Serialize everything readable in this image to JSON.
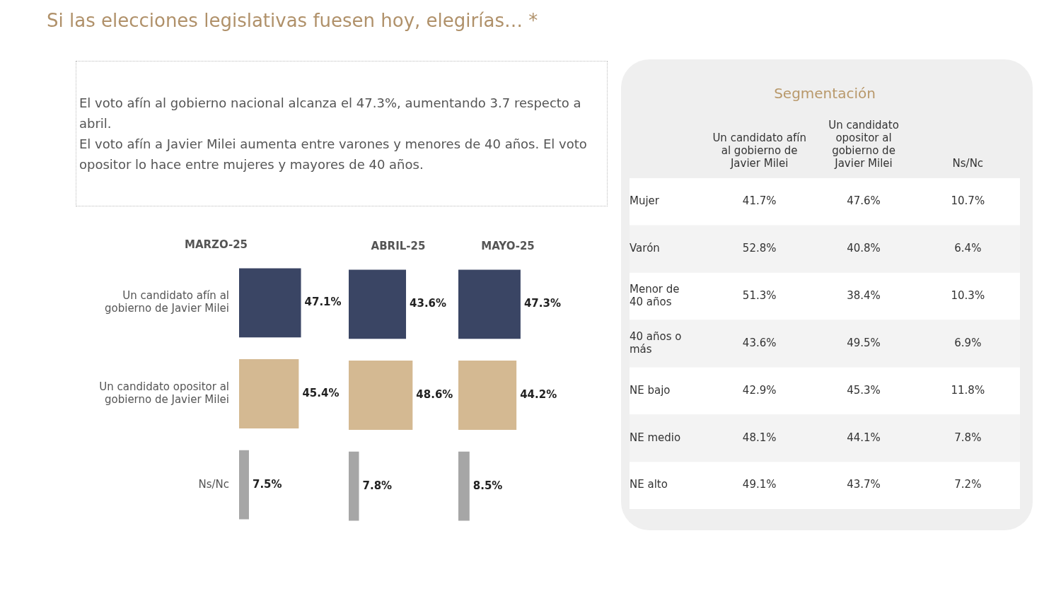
{
  "chart_data": [
    {
      "type": "other",
      "title": "Si las elecciones legislativas fuesen hoy, elegirías… *",
      "annotations": [
        "El voto afín al gobierno nacional alcanza el 47.3%, aumentando 3.7 respecto a abril.",
        "El voto afín a Javier Milei aumenta entre varones y menores de 40 años. El voto opositor lo hace entre mujeres y mayores de 40 años."
      ]
    },
    {
      "type": "bar",
      "orientation": "horizontal",
      "title": "MARZO-25",
      "tick_labels": "y",
      "categories": [
        "Un candidato afín al gobierno de Javier Milei",
        "Un candidato opositor al gobierno de Javier Milei",
        "Ns/Nc"
      ],
      "values": [
        47.1,
        45.4,
        7.5
      ],
      "value_labels": [
        "47.1%",
        "45.4%",
        "7.5%"
      ],
      "colors": [
        "#3a4564",
        "#d4b992",
        "#a6a6a6"
      ]
    },
    {
      "type": "bar",
      "orientation": "horizontal",
      "title": "ABRIL-25",
      "tick_labels": false,
      "categories": [
        null,
        null,
        null
      ],
      "values": [
        43.6,
        48.6,
        7.8
      ],
      "value_labels": [
        "43.6%",
        "48.6%",
        "7.8%"
      ],
      "colors": [
        "#3a4564",
        "#d4b992",
        "#a6a6a6"
      ]
    },
    {
      "type": "bar",
      "orientation": "horizontal",
      "title": "MAYO-25",
      "tick_labels": false,
      "categories": [
        null,
        null,
        null
      ],
      "values": [
        47.3,
        44.2,
        8.5
      ],
      "value_labels": [
        "47.3%",
        "44.2%",
        "8.5%"
      ],
      "colors": [
        "#3a4564",
        "#d4b992",
        "#a6a6a6"
      ]
    },
    {
      "type": "heatmap",
      "title": "Segmentación",
      "categories": [
        "Un candidato afín al gobierno de Javier Milei",
        "Un candidato opositor al gobierno de Javier Milei",
        "Ns/Nc"
      ],
      "y_categories": [
        "Mujer",
        "Varón",
        "Menor de 40 años",
        "40 años o más",
        "NE bajo",
        "NE medio",
        "NE alto"
      ],
      "cells": [
        [
          41.7,
          47.6,
          10.7
        ],
        [
          52.8,
          40.8,
          6.4
        ],
        [
          51.3,
          38.4,
          10.3
        ],
        [
          43.6,
          49.5,
          6.9
        ],
        [
          42.9,
          45.3,
          11.8
        ],
        [
          48.1,
          44.1,
          7.8
        ],
        [
          49.1,
          43.7,
          7.2
        ]
      ],
      "cell_labels": [
        [
          "41.7%",
          "47.6%",
          "10.7%"
        ],
        [
          "52.8%",
          "40.8%",
          "6.4%"
        ],
        [
          "51.3%",
          "38.4%",
          "10.3%"
        ],
        [
          "43.6%",
          "49.5%",
          "6.9%"
        ],
        [
          "42.9%",
          "45.3%",
          "11.8%"
        ],
        [
          "48.1%",
          "44.1%",
          "7.8%"
        ],
        [
          "49.1%",
          "43.7%",
          "7.2%"
        ]
      ]
    }
  ]
}
